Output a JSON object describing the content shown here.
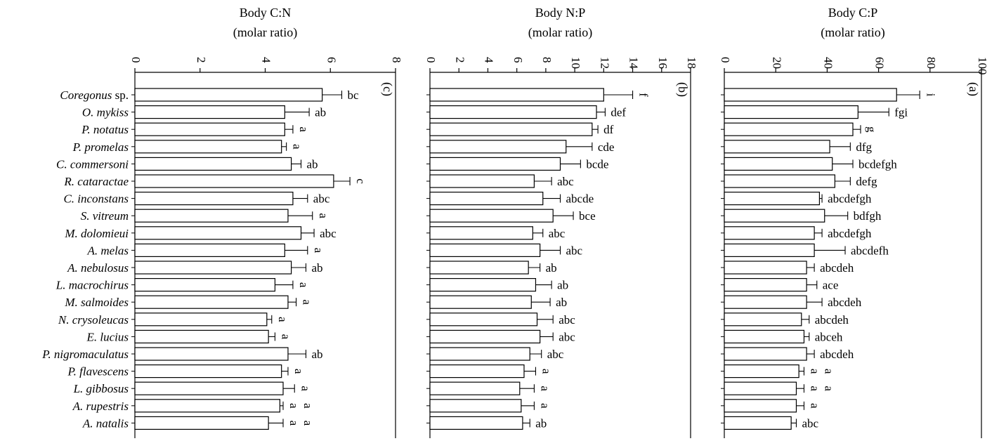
{
  "chart_data": {
    "type": "bar",
    "orientation": "horizontal",
    "categories": [
      {
        "genus": "Coregonus",
        "suffix": " sp."
      },
      {
        "genus": "O. mykiss",
        "suffix": ""
      },
      {
        "genus": "P. notatus",
        "suffix": ""
      },
      {
        "genus": "P. promelas",
        "suffix": ""
      },
      {
        "genus": "C. commersoni",
        "suffix": ""
      },
      {
        "genus": "R. cataractae",
        "suffix": ""
      },
      {
        "genus": "C. inconstans",
        "suffix": ""
      },
      {
        "genus": "S. vitreum",
        "suffix": ""
      },
      {
        "genus": "M. dolomieui",
        "suffix": ""
      },
      {
        "genus": "A. melas",
        "suffix": ""
      },
      {
        "genus": "A. nebulosus",
        "suffix": ""
      },
      {
        "genus": "L. macrochirus",
        "suffix": ""
      },
      {
        "genus": "M. salmoides",
        "suffix": ""
      },
      {
        "genus": "N. crysoleucas",
        "suffix": ""
      },
      {
        "genus": "E. lucius",
        "suffix": ""
      },
      {
        "genus": "P. nigromaculatus",
        "suffix": ""
      },
      {
        "genus": "P. flavescens",
        "suffix": ""
      },
      {
        "genus": "L. gibbosus",
        "suffix": ""
      },
      {
        "genus": "A. rupestris",
        "suffix": ""
      },
      {
        "genus": "A. natalis",
        "suffix": ""
      }
    ],
    "panels": [
      {
        "panel_label": "(c)",
        "title_line1": "Body C:N",
        "title_line2": "(molar ratio)",
        "xlim": [
          0,
          8
        ],
        "ticks": [
          0,
          2,
          4,
          6,
          8
        ],
        "values": [
          5.75,
          4.6,
          4.6,
          4.5,
          4.8,
          6.1,
          4.85,
          4.7,
          5.1,
          4.6,
          4.8,
          4.3,
          4.7,
          4.05,
          4.1,
          4.7,
          4.5,
          4.55,
          4.45,
          4.1
        ],
        "errors": [
          0.6,
          0.75,
          0.25,
          0.15,
          0.3,
          0.5,
          0.45,
          0.75,
          0.4,
          0.7,
          0.45,
          0.55,
          0.25,
          0.15,
          0.2,
          0.55,
          0.2,
          0.35,
          0.1,
          0.45
        ],
        "letters": [
          "bc",
          "ab",
          "a",
          "a",
          "ab",
          "c",
          "abc",
          "a",
          "abc",
          "a",
          "ab",
          "a",
          "a",
          "a",
          "a",
          "ab",
          "a",
          "a",
          "a",
          "a"
        ],
        "letter_rotated": [
          false,
          false,
          true,
          true,
          false,
          true,
          false,
          true,
          false,
          true,
          false,
          true,
          true,
          true,
          true,
          false,
          true,
          true,
          true,
          true
        ],
        "extra_letters": [
          "",
          "",
          "",
          "",
          "",
          "",
          "",
          "",
          "",
          "",
          "",
          "",
          "",
          "",
          "",
          "",
          "",
          "",
          "a",
          "a"
        ]
      },
      {
        "panel_label": "(b)",
        "title_line1": "Body N:P",
        "title_line2": "(molar ratio)",
        "xlim": [
          0,
          18
        ],
        "ticks": [
          0,
          2,
          4,
          6,
          8,
          10,
          12,
          14,
          16,
          18
        ],
        "values": [
          12.0,
          11.5,
          11.2,
          9.4,
          9.0,
          7.2,
          7.8,
          8.5,
          7.1,
          7.6,
          6.8,
          7.3,
          7.0,
          7.4,
          7.6,
          6.9,
          6.5,
          6.2,
          6.3,
          6.4
        ],
        "errors": [
          2.0,
          0.6,
          0.4,
          1.8,
          1.4,
          1.2,
          1.2,
          1.4,
          0.7,
          1.4,
          0.8,
          1.1,
          1.3,
          1.1,
          0.9,
          0.8,
          0.8,
          1.0,
          0.9,
          0.5
        ],
        "letters": [
          "f",
          "def",
          "df",
          "cde",
          "bcde",
          "abc",
          "abcde",
          "bce",
          "abc",
          "abc",
          "ab",
          "ab",
          "ab",
          "abc",
          "abc",
          "abc",
          "a",
          "a",
          "a",
          "ab"
        ],
        "letter_rotated": [
          true,
          false,
          false,
          false,
          false,
          false,
          false,
          false,
          false,
          false,
          false,
          false,
          false,
          false,
          false,
          false,
          true,
          true,
          true,
          false
        ],
        "extra_letters": [
          "",
          "",
          "",
          "",
          "",
          "",
          "",
          "",
          "",
          "",
          "",
          "",
          "",
          "",
          "",
          "",
          "",
          "",
          "",
          ""
        ]
      },
      {
        "panel_label": "(a)",
        "title_line1": "Body C:P",
        "title_line2": "(molar ratio)",
        "xlim": [
          0,
          100
        ],
        "ticks": [
          0,
          20,
          40,
          60,
          80,
          100
        ],
        "values": [
          67,
          52,
          50,
          41,
          42,
          43,
          37,
          39,
          35,
          35,
          32,
          32,
          32,
          30,
          31,
          32,
          29,
          28,
          28,
          26
        ],
        "errors": [
          9,
          12,
          3,
          8,
          8,
          6,
          1,
          9,
          3,
          12,
          3,
          4,
          6,
          3,
          2,
          3,
          2,
          3,
          3,
          2
        ],
        "letters": [
          "i",
          "fgi",
          "g",
          "dfg",
          "bcdefgh",
          "defg",
          "abcdefgh",
          "bdfgh",
          "abcdefgh",
          "abcdefh",
          "abcdeh",
          "ace",
          "abcdeh",
          "abcdeh",
          "abceh",
          "abcdeh",
          "a",
          "a",
          "a",
          "abc"
        ],
        "letter_rotated": [
          true,
          false,
          true,
          false,
          false,
          false,
          false,
          false,
          false,
          false,
          false,
          false,
          false,
          false,
          false,
          false,
          true,
          true,
          true,
          false
        ],
        "extra_letters": [
          "",
          "",
          "",
          "",
          "",
          "",
          "",
          "",
          "",
          "",
          "",
          "",
          "",
          "",
          "",
          "",
          "a",
          "a",
          "",
          ""
        ]
      }
    ]
  }
}
